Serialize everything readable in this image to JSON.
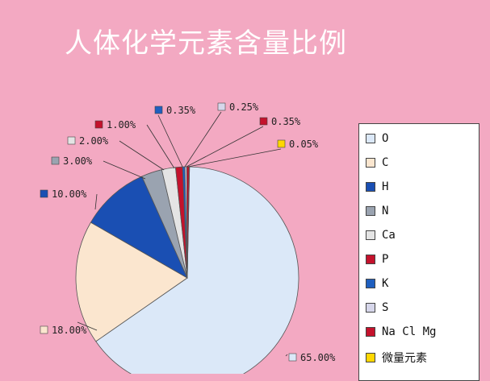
{
  "chart_data": {
    "type": "pie",
    "title": "人体化学元素含量比例",
    "slices": [
      {
        "name": "O",
        "label": "65.00%",
        "value": 65.0,
        "color": "#dbe8f8"
      },
      {
        "name": "C",
        "label": "18.00%",
        "value": 18.0,
        "color": "#fbe6cf"
      },
      {
        "name": "H",
        "label": "10.00%",
        "value": 10.0,
        "color": "#1a4fb3"
      },
      {
        "name": "N",
        "label": "3.00%",
        "value": 3.0,
        "color": "#9aa3b0"
      },
      {
        "name": "Ca",
        "label": "2.00%",
        "value": 2.0,
        "color": "#e4e4e4"
      },
      {
        "name": "P",
        "label": "1.00%",
        "value": 1.0,
        "color": "#c4122c"
      },
      {
        "name": "K",
        "label": "0.35%",
        "value": 0.35,
        "color": "#1f5fbf"
      },
      {
        "name": "S",
        "label": "0.25%",
        "value": 0.25,
        "color": "#d6d6ea"
      },
      {
        "name": "Na Cl Mg",
        "label": "0.35%",
        "value": 0.35,
        "color": "#c4122c"
      },
      {
        "name": "微量元素",
        "label": "0.05%",
        "value": 0.05,
        "color": "#ffd700"
      }
    ],
    "legend_position": "right"
  }
}
